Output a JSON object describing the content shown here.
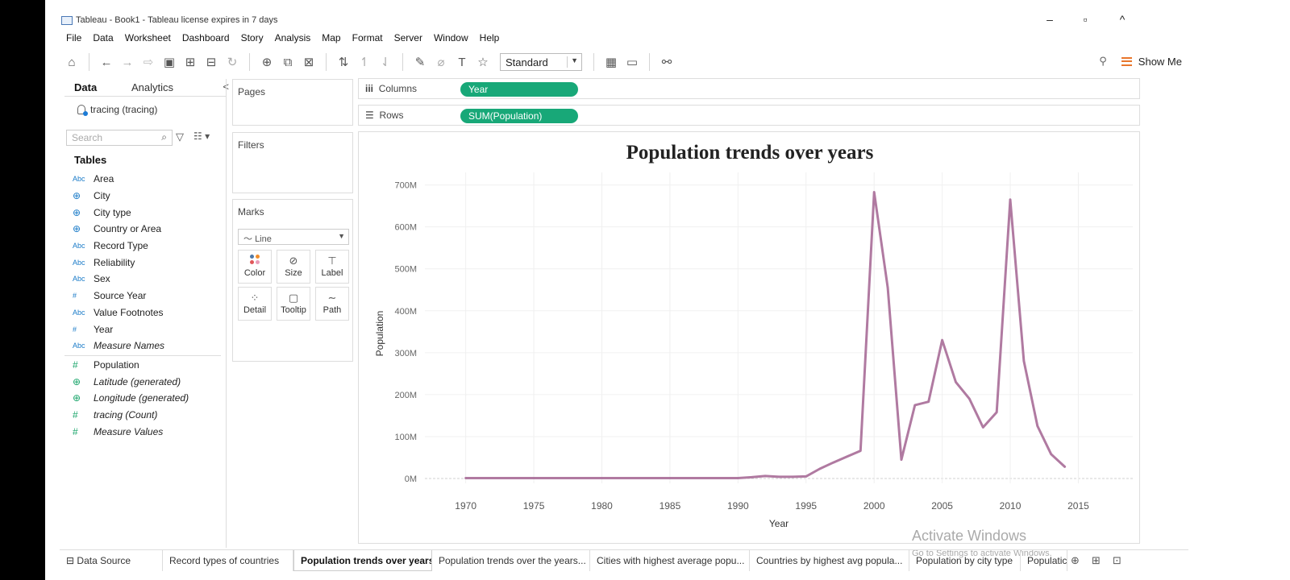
{
  "window": {
    "title": "Tableau - Book1 - Tableau license expires in 7 days",
    "minimize": "–",
    "maximize": "▫",
    "close": "^"
  },
  "menu": [
    "File",
    "Data",
    "Worksheet",
    "Dashboard",
    "Story",
    "Analysis",
    "Map",
    "Format",
    "Server",
    "Window",
    "Help"
  ],
  "toolbar": {
    "fit": "Standard",
    "show_me": "Show Me"
  },
  "data_pane": {
    "tab_data": "Data",
    "tab_analytics": "Analytics",
    "collapse": "<",
    "datasource": "tracing (tracing)",
    "search_placeholder": "Search",
    "tables_heading": "Tables",
    "dimensions": [
      {
        "icon": "Abc",
        "name": "Area",
        "kind": "string"
      },
      {
        "icon": "⊕",
        "name": "City",
        "kind": "geo"
      },
      {
        "icon": "⊕",
        "name": "City type",
        "kind": "geo"
      },
      {
        "icon": "⊕",
        "name": "Country or Area",
        "kind": "geo"
      },
      {
        "icon": "Abc",
        "name": "Record Type",
        "kind": "string"
      },
      {
        "icon": "Abc",
        "name": "Reliability",
        "kind": "string"
      },
      {
        "icon": "Abc",
        "name": "Sex",
        "kind": "string"
      },
      {
        "icon": "#",
        "name": "Source Year",
        "kind": "number"
      },
      {
        "icon": "Abc",
        "name": "Value Footnotes",
        "kind": "string"
      },
      {
        "icon": "#",
        "name": "Year",
        "kind": "number"
      },
      {
        "icon": "Abc",
        "name": "Measure Names",
        "kind": "string-italic"
      }
    ],
    "measures": [
      {
        "icon": "#",
        "name": "Population",
        "italic": false
      },
      {
        "icon": "⊕",
        "name": "Latitude (generated)",
        "italic": true
      },
      {
        "icon": "⊕",
        "name": "Longitude (generated)",
        "italic": true
      },
      {
        "icon": "#",
        "name": "tracing (Count)",
        "italic": true
      },
      {
        "icon": "#",
        "name": "Measure Values",
        "italic": true
      }
    ]
  },
  "cards": {
    "pages": "Pages",
    "filters": "Filters",
    "marks": "Marks",
    "mark_type": "Line",
    "buttons": [
      "Color",
      "Size",
      "Label",
      "Detail",
      "Tooltip",
      "Path"
    ]
  },
  "shelves": {
    "columns_label": "Columns",
    "columns_pill": "Year",
    "rows_label": "Rows",
    "rows_pill": "SUM(Population)"
  },
  "chart_data": {
    "type": "line",
    "title": "Population trends over years",
    "xlabel": "Year",
    "ylabel": "Population",
    "x_ticks": [
      1970,
      1975,
      1980,
      1985,
      1990,
      1995,
      2000,
      2005,
      2010,
      2015
    ],
    "y_ticks": [
      "0M",
      "100M",
      "200M",
      "300M",
      "400M",
      "500M",
      "600M",
      "700M"
    ],
    "xlim": [
      1967,
      2019
    ],
    "ylim": [
      0,
      730
    ],
    "grid": true,
    "line_color": "#b07aa1",
    "series": [
      {
        "x": [
          1970,
          1975,
          1980,
          1985,
          1990,
          1991,
          1992,
          1993,
          1994,
          1995,
          1996,
          1997,
          1998,
          1999,
          2000,
          2001,
          2002,
          2003,
          2004,
          2005,
          2006,
          2007,
          2008,
          2009,
          2010,
          2011,
          2012,
          2013,
          2014
        ],
        "y": [
          1,
          1,
          1,
          1,
          1,
          3,
          6,
          4,
          4,
          5,
          23,
          38,
          52,
          66,
          683,
          455,
          45,
          175,
          183,
          330,
          230,
          190,
          122,
          158,
          665,
          280,
          125,
          58,
          28
        ]
      }
    ]
  },
  "watermark": {
    "line1": "Activate Windows",
    "line2": "Go to Settings to activate Windows."
  },
  "sheet_tabs": {
    "data_source": "Data Source",
    "tabs": [
      "Record types of countries",
      "Population trends over years",
      "Population trends over the years...",
      "Cities with highest average popu...",
      "Countries by highest avg popula...",
      "Population by city type",
      "Populatic"
    ],
    "active_index": 1
  }
}
